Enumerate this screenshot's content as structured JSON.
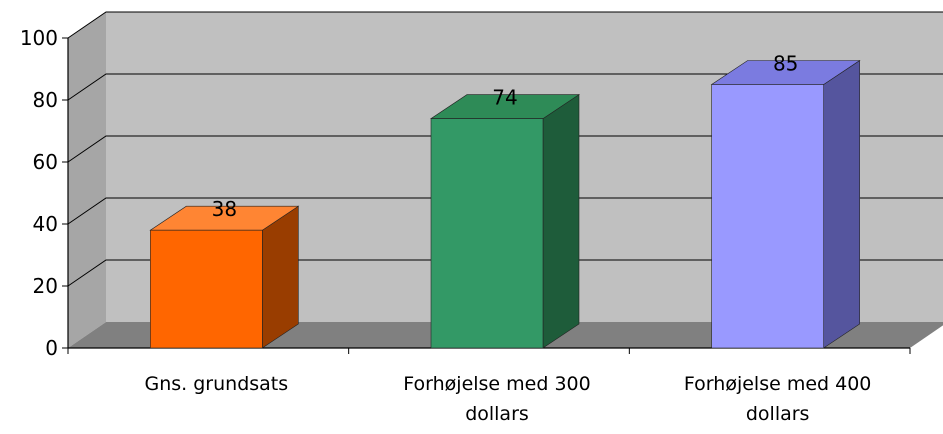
{
  "chart_data": {
    "type": "bar",
    "categories": [
      "Gns. grundsats",
      "Forhøjelse med 300 dollars",
      "Forhøjelse med 400 dollars"
    ],
    "values": [
      38,
      74,
      85
    ],
    "data_labels": [
      "38",
      "74",
      "85"
    ],
    "ylim": [
      0,
      100
    ],
    "y_ticks": [
      0,
      20,
      40,
      60,
      80,
      100
    ],
    "grid": true,
    "legend": "none",
    "three_d": true,
    "colors": {
      "bars": [
        "#ff6600",
        "#339966",
        "#9999ff"
      ],
      "bar_tops": [
        "#ff8533",
        "#2e8b57",
        "#7b7be0"
      ],
      "bar_sides": [
        "#993d00",
        "#1e5c3a",
        "#55559e"
      ],
      "wall": "#c0c0c0",
      "wall_side": "#a6a6a6",
      "floor": "#808080",
      "gridline": "#000000"
    }
  }
}
